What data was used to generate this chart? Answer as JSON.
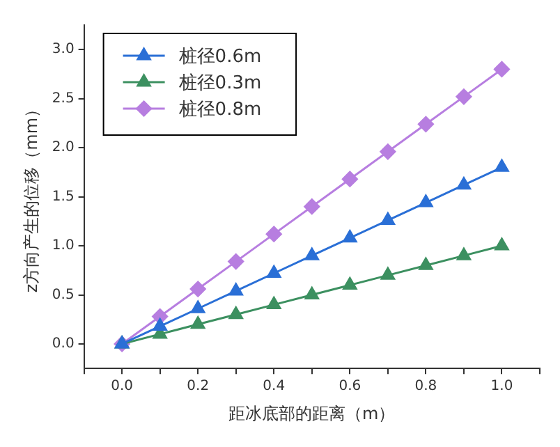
{
  "chart_data": {
    "type": "line",
    "xlabel": "距冰底部的距离（m）",
    "ylabel": "z方向产生的位移（mm）",
    "x": [
      0,
      0.1,
      0.2,
      0.3,
      0.4,
      0.5,
      0.6,
      0.7,
      0.8,
      0.9,
      1.0
    ],
    "series": [
      {
        "name": "桩径0.6m",
        "color": "#2a6fd6",
        "marker": "triangle",
        "values": [
          0,
          0.18,
          0.36,
          0.54,
          0.72,
          0.9,
          1.08,
          1.26,
          1.44,
          1.62,
          1.8
        ]
      },
      {
        "name": "桩径0.3m",
        "color": "#3c9060",
        "marker": "triangle",
        "values": [
          0,
          0.1,
          0.2,
          0.3,
          0.4,
          0.5,
          0.6,
          0.7,
          0.8,
          0.9,
          1.0
        ]
      },
      {
        "name": "桩径0.8m",
        "color": "#b77ee0",
        "marker": "diamond",
        "values": [
          0,
          0.28,
          0.56,
          0.84,
          1.12,
          1.4,
          1.68,
          1.96,
          2.24,
          2.52,
          2.8
        ]
      }
    ],
    "xlim": [
      -0.1,
      1.1
    ],
    "xticks": [
      {
        "value": -0.1,
        "label": null
      },
      {
        "value": 0,
        "label": "0.0"
      },
      {
        "value": 0.1,
        "label": null
      },
      {
        "value": 0.2,
        "label": "0.2"
      },
      {
        "value": 0.3,
        "label": null
      },
      {
        "value": 0.4,
        "label": "0.4"
      },
      {
        "value": 0.5,
        "label": null
      },
      {
        "value": 0.6,
        "label": "0.6"
      },
      {
        "value": 0.7,
        "label": null
      },
      {
        "value": 0.8,
        "label": "0.8"
      },
      {
        "value": 0.9,
        "label": null
      },
      {
        "value": 1.0,
        "label": "1.0"
      },
      {
        "value": 1.1,
        "label": null
      }
    ],
    "ylim": [
      -0.25,
      3.25
    ],
    "yticks": [
      {
        "value": 0,
        "label": "0.0"
      },
      {
        "value": 0.5,
        "label": "0.5"
      },
      {
        "value": 1,
        "label": "1.0"
      },
      {
        "value": 1.5,
        "label": "1.5"
      },
      {
        "value": 2,
        "label": "2.0"
      },
      {
        "value": 2.5,
        "label": "2.5"
      },
      {
        "value": 3,
        "label": "3.0"
      }
    ],
    "grid": false,
    "legend": "top left",
    "line_style": "solid"
  }
}
